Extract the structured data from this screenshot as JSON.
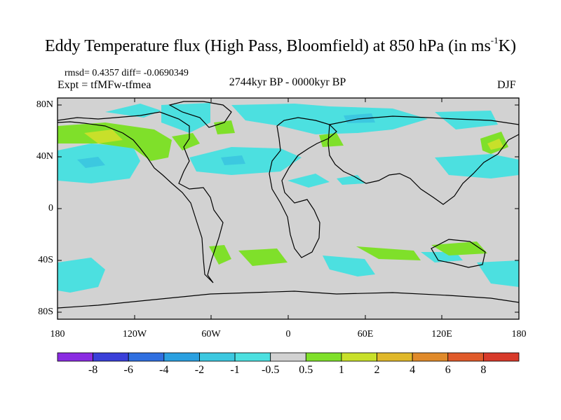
{
  "title": {
    "main": "Eddy Temperature flux (High Pass, Bloomfield) at 850 hPa (in ms",
    "sup": "-1",
    "tail": "K)"
  },
  "stats": "rmsd= 0.4357 diff= -0.0690349",
  "experiment": "Expt = tfMFw-tfmea",
  "period": "2744kyr BP - 0000kyr BP",
  "season": "DJF",
  "axes": {
    "lat_labels": [
      "80N",
      "40N",
      "0",
      "40S",
      "80S"
    ],
    "lon_labels": [
      "180",
      "120W",
      "60W",
      "0",
      "60E",
      "120E",
      "180"
    ]
  },
  "colorbar": {
    "labels": [
      "-8",
      "-6",
      "-4",
      "-2",
      "-1",
      "-0.5",
      "0.5",
      "1",
      "2",
      "4",
      "6",
      "8"
    ],
    "colors": [
      "#8a2be2",
      "#3a3fd9",
      "#2f6fe0",
      "#2aa0e0",
      "#3cc8e0",
      "#4ce0e0",
      "#d2d2d2",
      "#7fe02a",
      "#c8e02a",
      "#e0b82a",
      "#e08a2a",
      "#e05a2a",
      "#d83a2a"
    ]
  },
  "map": {
    "background": "#d2d2d2",
    "coast_color": "#000000"
  }
}
